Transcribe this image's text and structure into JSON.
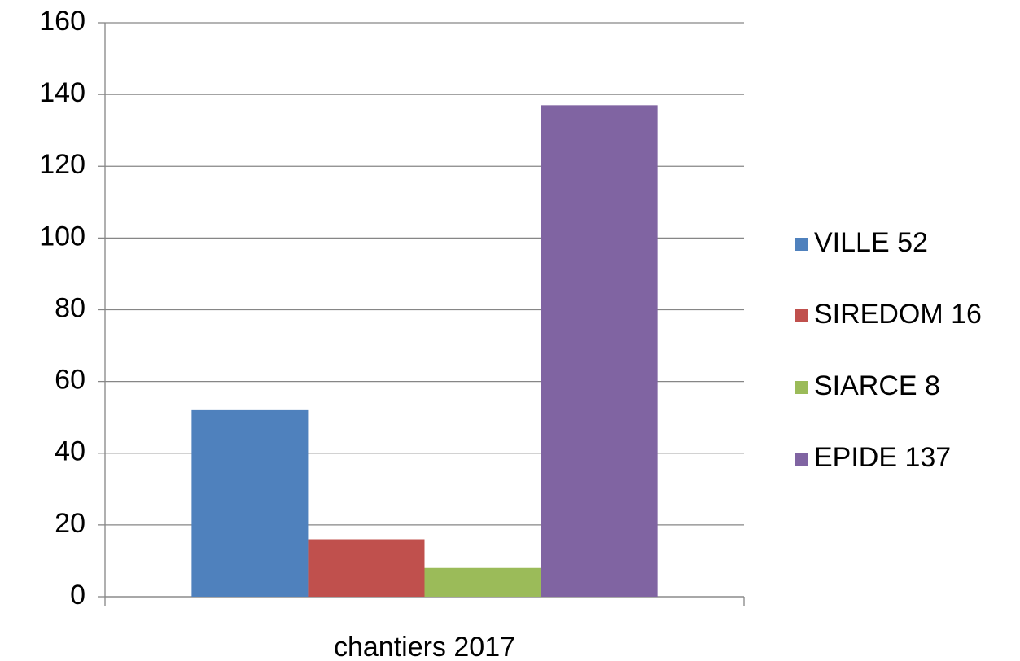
{
  "chart_data": {
    "type": "bar",
    "categories": [
      "chantiers 2017"
    ],
    "series": [
      {
        "name": "VILLE 52",
        "color": "#4f81bd",
        "values": [
          52
        ]
      },
      {
        "name": "SIREDOM 16",
        "color": "#c0504d",
        "values": [
          16
        ]
      },
      {
        "name": "SIARCE 8",
        "color": "#9bbb59",
        "values": [
          8
        ]
      },
      {
        "name": "EPIDE 137",
        "color": "#8064a2",
        "values": [
          137
        ]
      }
    ],
    "ylim": [
      0,
      160
    ],
    "yticks": [
      0,
      20,
      40,
      60,
      80,
      100,
      120,
      140,
      160
    ],
    "grid": true,
    "legend": "right"
  }
}
